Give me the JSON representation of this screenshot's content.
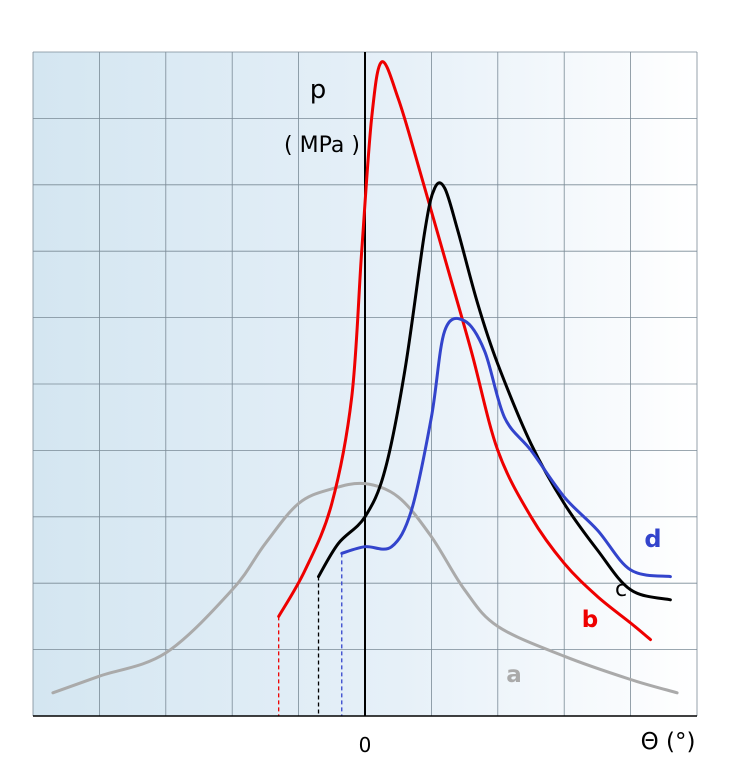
{
  "chart_data": {
    "type": "line",
    "xlabel": "Θ (°)",
    "ylabel_line1": "p",
    "ylabel_line2": "( MPa )",
    "x_tick_labels": [
      "0"
    ],
    "xlim": [
      -5,
      5
    ],
    "ylim": [
      0,
      10
    ],
    "grid": true,
    "series": [
      {
        "name": "a",
        "color": "#aaaaaa",
        "x": [
          -4.7,
          -4.0,
          -3.0,
          -2.0,
          -1.5,
          -1.0,
          -0.5,
          0.0,
          0.5,
          1.0,
          1.5,
          2.0,
          3.0,
          4.0,
          4.7
        ],
        "y": [
          0.35,
          0.6,
          0.95,
          1.9,
          2.6,
          3.2,
          3.42,
          3.5,
          3.3,
          2.7,
          1.9,
          1.35,
          0.9,
          0.55,
          0.35
        ]
      },
      {
        "name": "b",
        "color": "#ee0000",
        "x": [
          -1.3,
          -0.9,
          -0.5,
          -0.2,
          -0.05,
          0.1,
          0.25,
          0.5,
          0.8,
          1.2,
          1.6,
          2.0,
          2.5,
          3.0,
          3.5,
          4.0,
          4.3
        ],
        "y": [
          1.5,
          2.2,
          3.2,
          4.8,
          7.0,
          9.0,
          9.85,
          9.3,
          8.3,
          6.9,
          5.5,
          4.0,
          3.0,
          2.3,
          1.8,
          1.4,
          1.15
        ]
      },
      {
        "name": "c",
        "color": "#000000",
        "x": [
          -0.7,
          -0.4,
          0.0,
          0.3,
          0.6,
          0.9,
          1.05,
          1.2,
          1.4,
          1.7,
          2.0,
          2.5,
          3.0,
          3.5,
          4.0,
          4.6
        ],
        "y": [
          2.1,
          2.6,
          3.0,
          3.7,
          5.2,
          7.3,
          7.95,
          7.95,
          7.3,
          6.2,
          5.3,
          4.1,
          3.2,
          2.5,
          1.9,
          1.75
        ]
      },
      {
        "name": "d",
        "color": "#3344cc",
        "x": [
          -0.35,
          0.0,
          0.4,
          0.7,
          1.0,
          1.2,
          1.5,
          1.8,
          2.1,
          2.5,
          3.0,
          3.5,
          4.0,
          4.6
        ],
        "y": [
          2.45,
          2.55,
          2.55,
          3.1,
          4.5,
          5.8,
          5.95,
          5.5,
          4.5,
          4.0,
          3.3,
          2.8,
          2.2,
          2.1
        ]
      }
    ],
    "series_labels": [
      "a",
      "b",
      "c",
      "d"
    ]
  }
}
